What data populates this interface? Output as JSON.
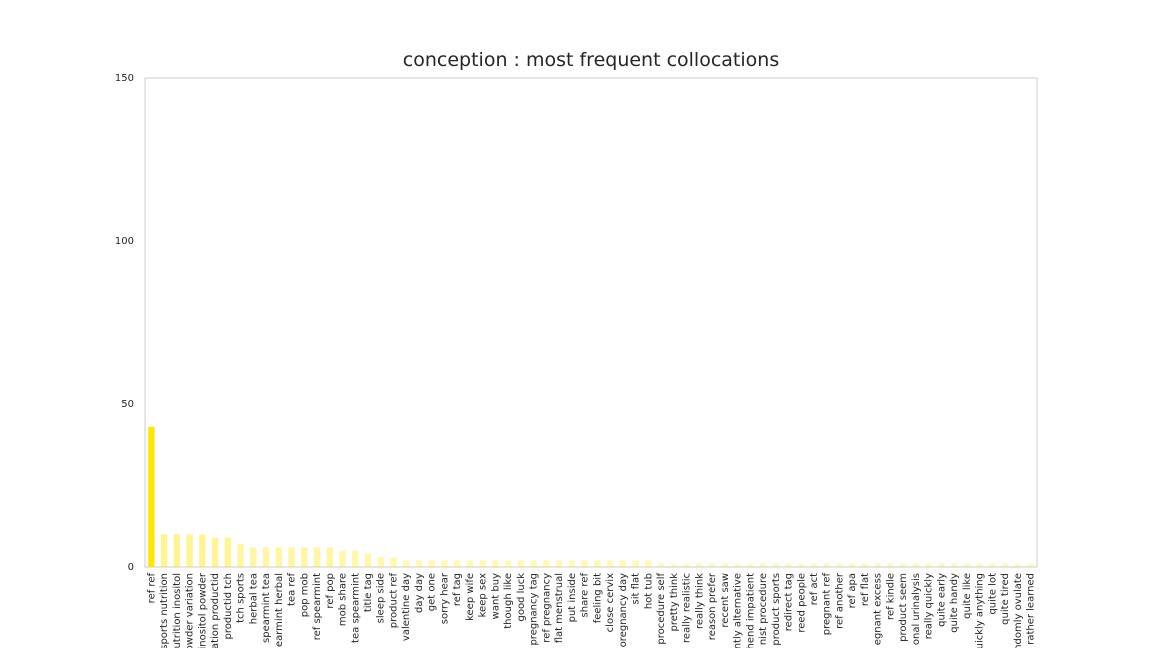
{
  "chart_data": {
    "type": "bar",
    "title": "conception : most frequent collocations",
    "categories": [
      "ref ref",
      "sports nutrition",
      "utrition inositol",
      "owder variation",
      "inositol powder",
      "ation productid",
      "productid tch",
      "tch sports",
      "herbal tea",
      "spearmint tea",
      "earmint herbal",
      "tea ref",
      "pop mob",
      "ref spearmint",
      "ref pop",
      "mob share",
      "tea spearmint",
      "title tag",
      "sleep side",
      "product ref",
      "valentine day",
      "day day",
      "get one",
      "sorry hear",
      "ref tag",
      "keep wife",
      "keep sex",
      "want buy",
      "though like",
      "good luck",
      "pregnancy tag",
      "ref pregnancy",
      "flat menstrual",
      "put inside",
      "share ref",
      "feeling bit",
      "close cervix",
      "oregnancy day",
      "sit flat",
      "hot tub",
      "procedure self",
      "pretty think",
      "really realistic",
      "really think",
      "reason prefer",
      "recent saw",
      "ntly alternative",
      "hend impatient",
      "nist procedure",
      "product sports",
      "redirect tag",
      "reed people",
      "ref act",
      "pregnant ref",
      "ref another",
      "ref apa",
      "ref flat",
      "egnant excess",
      "ref kindle",
      "product seem",
      "onal urinalysis",
      "really quickly",
      "quite early",
      "quite handy",
      "quite like",
      "uickly anything",
      "quite lot",
      "quite tired",
      "ndomly ovulate",
      "rather learned"
    ],
    "values": [
      43,
      10,
      10,
      10,
      10,
      9,
      9,
      7,
      6,
      6,
      6,
      6,
      6,
      6,
      6,
      5,
      5,
      4,
      3,
      3,
      2,
      2,
      2,
      2,
      2,
      2,
      2,
      2,
      2,
      2,
      2,
      2,
      2,
      2,
      2,
      2,
      2,
      2,
      2,
      2,
      1,
      1,
      1,
      1,
      1,
      1,
      1,
      1,
      1,
      1,
      1,
      1,
      1,
      1,
      1,
      1,
      1,
      1,
      1,
      1,
      1,
      1,
      1,
      1,
      1,
      1,
      1,
      1,
      1,
      1
    ],
    "color": "#ffe600",
    "ylim": [
      0,
      150
    ],
    "yticks": [
      0,
      50,
      100,
      150
    ],
    "grid": false
  }
}
